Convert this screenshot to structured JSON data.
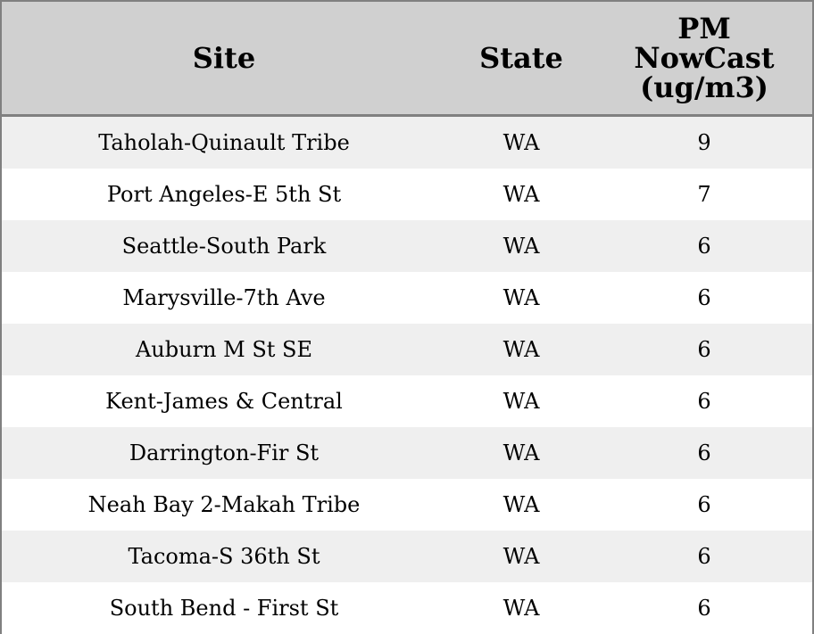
{
  "table": {
    "headers": [
      "Site",
      "State",
      "PM NowCast (ug/m3)"
    ],
    "header_lines": [
      "PM",
      "NowCast",
      "(ug/m3)"
    ],
    "rows": [
      [
        "Taholah-Quinault Tribe",
        "WA",
        "9"
      ],
      [
        "Port Angeles-E 5th St",
        "WA",
        "7"
      ],
      [
        "Seattle-South Park",
        "WA",
        "6"
      ],
      [
        "Marysville-7th Ave",
        "WA",
        "6"
      ],
      [
        "Auburn M St SE",
        "WA",
        "6"
      ],
      [
        "Kent-James & Central",
        "WA",
        "6"
      ],
      [
        "Darrington-Fir St",
        "WA",
        "6"
      ],
      [
        "Neah Bay 2-Makah Tribe",
        "WA",
        "6"
      ],
      [
        "Tacoma-S 36th St",
        "WA",
        "6"
      ],
      [
        "South Bend - First St",
        "WA",
        "6"
      ]
    ]
  },
  "colors": {
    "header_bg": "#d0d0d0",
    "stripe_bg": "#efefef",
    "border": "#808080"
  }
}
